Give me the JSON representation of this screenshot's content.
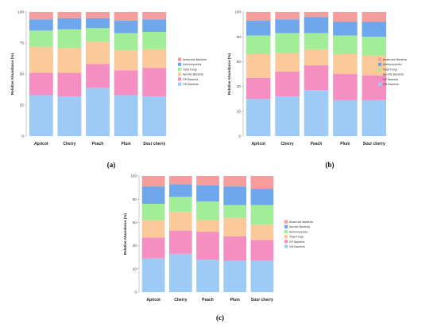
{
  "chart_data": [
    {
      "panel_label": "(a)",
      "type": "bar",
      "stacked": true,
      "ylabel": "Relative Abundance (%)",
      "ylim": [
        0,
        100
      ],
      "yticks": [
        "0",
        "25",
        "50",
        "75",
        "100"
      ],
      "categories": [
        "Apricot",
        "Cherry",
        "Peach",
        "Plum",
        "Sour cherry"
      ],
      "legend_position": "right",
      "series": [
        {
          "name": "GN Bacteria",
          "color": "#9ecbf5",
          "values": [
            33,
            32,
            39,
            33,
            32
          ]
        },
        {
          "name": "GP Bacteria",
          "color": "#f58fc1",
          "values": [
            18,
            19,
            19,
            20,
            23
          ]
        },
        {
          "name": "Aerobe Bacteria",
          "color": "#fbc99a",
          "values": [
            21,
            20,
            18,
            16,
            15
          ]
        },
        {
          "name": "Total Fungi",
          "color": "#a2ee98",
          "values": [
            13,
            15,
            11,
            14,
            14
          ]
        },
        {
          "name": "Actinomycetes",
          "color": "#6ea7ec",
          "values": [
            9,
            9,
            8,
            10,
            10
          ]
        },
        {
          "name": "Anaerobe Bacteria",
          "color": "#f59d9d",
          "values": [
            6,
            5,
            5,
            7,
            6
          ]
        }
      ]
    },
    {
      "panel_label": "(b)",
      "type": "bar",
      "stacked": true,
      "ylabel": "Relative Abundance (%)",
      "ylim": [
        0,
        100
      ],
      "yticks": [
        "0",
        "20",
        "40",
        "60",
        "80",
        "100"
      ],
      "categories": [
        "Apricot",
        "Cherry",
        "Peach",
        "Plum",
        "Sour cherry"
      ],
      "legend_position": "right",
      "series": [
        {
          "name": "GN Bacteria",
          "color": "#9ecbf5",
          "values": [
            30,
            32,
            37,
            29,
            29
          ]
        },
        {
          "name": "GP Bacteria",
          "color": "#f58fc1",
          "values": [
            17,
            20,
            20,
            21,
            20
          ]
        },
        {
          "name": "Aerobe Bacteria",
          "color": "#fbc99a",
          "values": [
            19,
            15,
            13,
            16,
            16
          ]
        },
        {
          "name": "Total Fungi",
          "color": "#a2ee98",
          "values": [
            15,
            16,
            13,
            15,
            15
          ]
        },
        {
          "name": "Actinomycetes",
          "color": "#6ea7ec",
          "values": [
            12,
            11,
            13,
            11,
            12
          ]
        },
        {
          "name": "Anaerobe Bacteria",
          "color": "#f59d9d",
          "values": [
            7,
            6,
            4,
            8,
            8
          ]
        }
      ]
    },
    {
      "panel_label": "(c)",
      "type": "bar",
      "stacked": true,
      "ylabel": "Relative Abundance (%)",
      "ylim": [
        0,
        100
      ],
      "yticks": [
        "0",
        "20",
        "40",
        "60",
        "80",
        "100"
      ],
      "categories": [
        "Apricot",
        "Cherry",
        "Peach",
        "Plum",
        "Sour cherry"
      ],
      "legend_position": "right",
      "series": [
        {
          "name": "GN Bacteria",
          "color": "#9ecbf5",
          "values": [
            29,
            33,
            28,
            27,
            27
          ]
        },
        {
          "name": "GP Bacteria",
          "color": "#f58fc1",
          "values": [
            18,
            20,
            24,
            21,
            18
          ]
        },
        {
          "name": "Total Fungi",
          "color": "#fbc99a",
          "values": [
            15,
            16,
            10,
            16,
            13
          ]
        },
        {
          "name": "Actinomycetes",
          "color": "#a2ee98",
          "values": [
            14,
            13,
            16,
            11,
            17
          ]
        },
        {
          "name": "Aerobe Bacteria",
          "color": "#6ea7ec",
          "values": [
            15,
            11,
            14,
            16,
            14
          ]
        },
        {
          "name": "Anaerobe Bacteria",
          "color": "#f59d9d",
          "values": [
            9,
            7,
            8,
            9,
            11
          ]
        }
      ]
    }
  ]
}
